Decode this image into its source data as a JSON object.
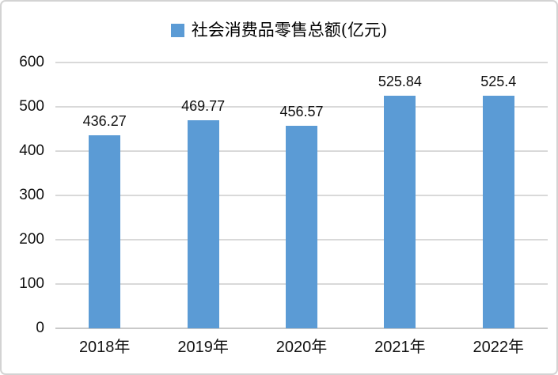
{
  "legend": {
    "label": "社会消费品零售总额(亿元)",
    "marker_color": "#5b9bd5"
  },
  "chart_data": {
    "type": "bar",
    "title": "社会消费品零售总额(亿元)",
    "categories": [
      "2018年",
      "2019年",
      "2020年",
      "2021年",
      "2022年"
    ],
    "values": [
      436.27,
      469.77,
      456.57,
      525.84,
      525.4
    ],
    "data_labels": [
      "436.27",
      "469.77",
      "456.57",
      "525.84",
      "525.4"
    ],
    "xlabel": "",
    "ylabel": "",
    "ylim": [
      0,
      600
    ],
    "yticks": [
      0,
      100,
      200,
      300,
      400,
      500,
      600
    ],
    "grid": true,
    "legend_position": "top",
    "bar_color": "#5b9bd5",
    "gridline_color": "#d9d9d9",
    "label_color": "#111111"
  }
}
